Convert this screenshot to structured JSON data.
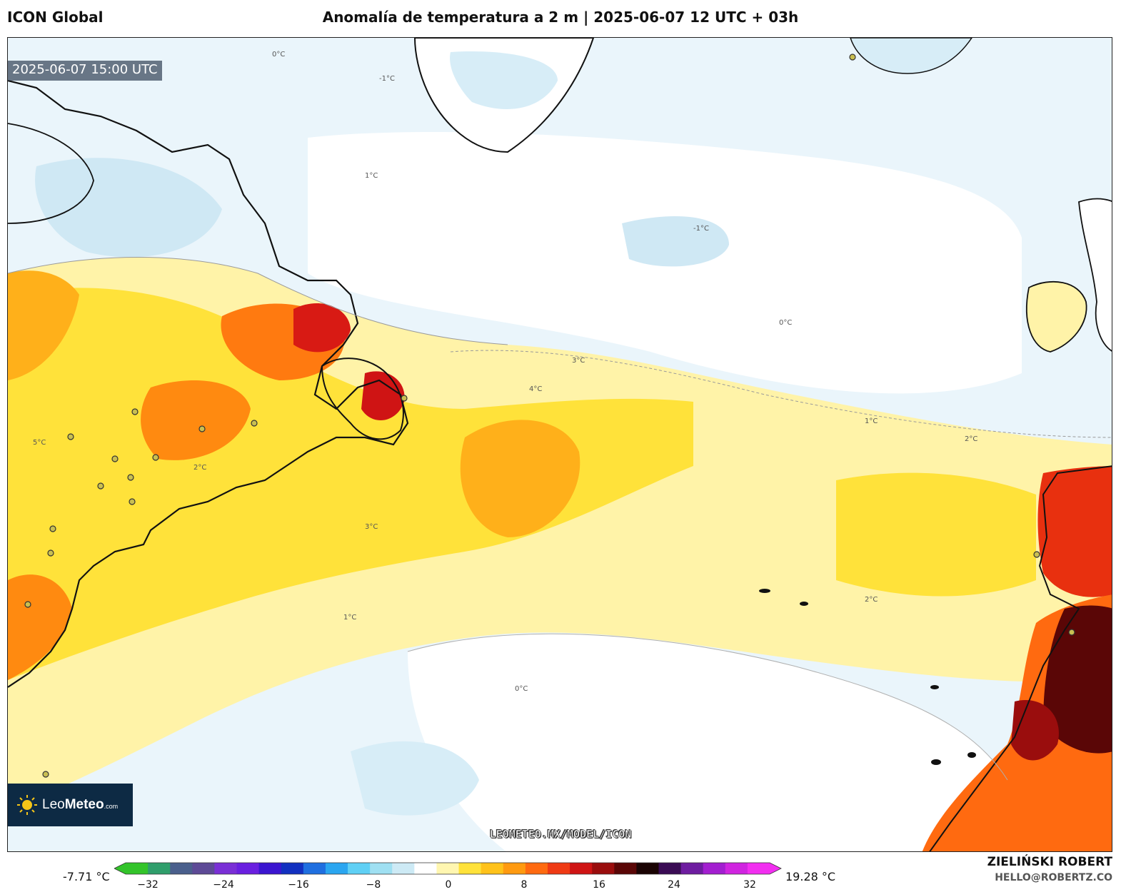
{
  "header": {
    "model_name": "ICON Global",
    "title": "Anomalía de temperatura a 2 m | 2025-06-07 12 UTC + 03h"
  },
  "map": {
    "valid_time": "2025-06-07 15:00 UTC",
    "source_url": "LEOMETEO.MX/MODEL/ICON",
    "contour_labels": [
      "0°C",
      "-1°C",
      "1°C",
      "2°C",
      "3°C",
      "0°C",
      "1°C",
      "2°C",
      "-1°C",
      "0°C",
      "1°C",
      "2°C",
      "3°C",
      "4°C",
      "5°C"
    ]
  },
  "logo": {
    "name_light": "Leo",
    "name_bold": "Meteo",
    "suffix": ".com"
  },
  "colorbar": {
    "min_label": "-7.71 °C",
    "max_label": "19.28 °C",
    "ticks": [
      "−32",
      "−24",
      "−16",
      "−8",
      "0",
      "8",
      "16",
      "24",
      "32"
    ],
    "colors": [
      "#33c42a",
      "#2f9e6b",
      "#4a5f8c",
      "#5d4a96",
      "#7a2fd6",
      "#6a1fe0",
      "#3b15d0",
      "#1230c0",
      "#1f6fe0",
      "#2aa6f0",
      "#5fd0f5",
      "#9fe0f2",
      "#cdeaf5",
      "#ffffff",
      "#fff6b0",
      "#ffe23a",
      "#ffc21a",
      "#ff9a10",
      "#ff6a10",
      "#ef3a14",
      "#cf1414",
      "#9a0d0d",
      "#5a0606",
      "#1a0303",
      "#3a0b54",
      "#6e1ca0",
      "#a31ed0",
      "#d024e0",
      "#f22ef0"
    ]
  },
  "credits": {
    "author": "ZIELIŃSKI ROBERT",
    "email": "HELLO@ROBERTZ.CO"
  }
}
